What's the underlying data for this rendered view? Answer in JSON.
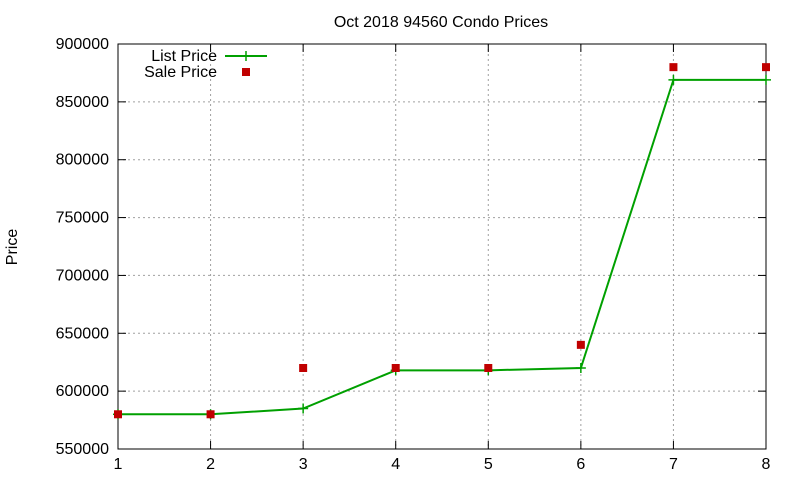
{
  "chart_data": {
    "type": "line",
    "title": "Oct 2018 94560 Condo Prices",
    "xlabel": "",
    "ylabel": "Price",
    "xlim": [
      1,
      8
    ],
    "ylim": [
      550000,
      900000
    ],
    "x_ticks": [
      1,
      2,
      3,
      4,
      5,
      6,
      7,
      8
    ],
    "y_ticks": [
      550000,
      600000,
      650000,
      700000,
      750000,
      800000,
      850000,
      900000
    ],
    "grid": true,
    "legend_position": "top-left",
    "series": [
      {
        "name": "List Price",
        "style": "line+cross",
        "color": "#00a000",
        "x": [
          1,
          2,
          3,
          4,
          5,
          6,
          7,
          8
        ],
        "values": [
          580000,
          580000,
          585000,
          618000,
          618000,
          620000,
          869000,
          869000
        ]
      },
      {
        "name": "Sale Price",
        "style": "square",
        "color": "#c00000",
        "x": [
          1,
          2,
          3,
          4,
          5,
          6,
          7,
          8
        ],
        "values": [
          580000,
          580000,
          620000,
          620000,
          620000,
          640000,
          880000,
          880000
        ]
      }
    ]
  }
}
